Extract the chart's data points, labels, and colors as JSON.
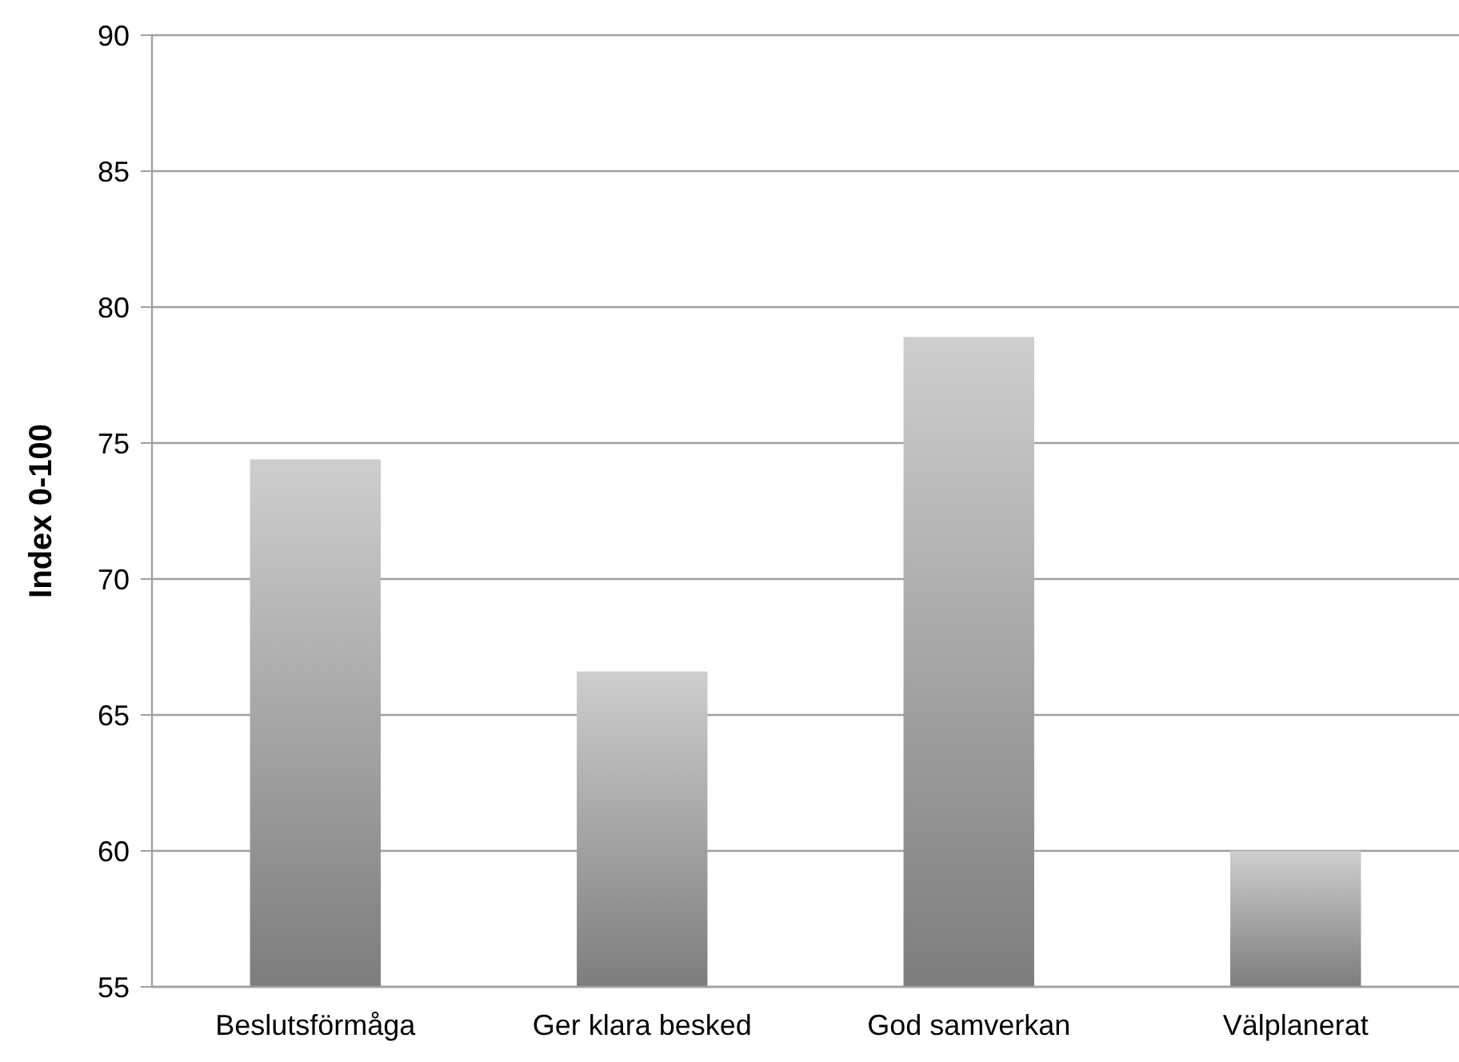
{
  "chart_data": {
    "type": "bar",
    "ylabel": "Index 0-100",
    "categories": [
      "Beslutsförmåga",
      "Ger klara besked",
      "God samverkan",
      "Välplanerat"
    ],
    "values": [
      74.4,
      66.6,
      78.9,
      60
    ],
    "color": "#a6a6a6",
    "ylim": [
      55,
      90
    ],
    "yticks": [
      55,
      60,
      65,
      70,
      75,
      80,
      85,
      90
    ],
    "grid": "y"
  }
}
